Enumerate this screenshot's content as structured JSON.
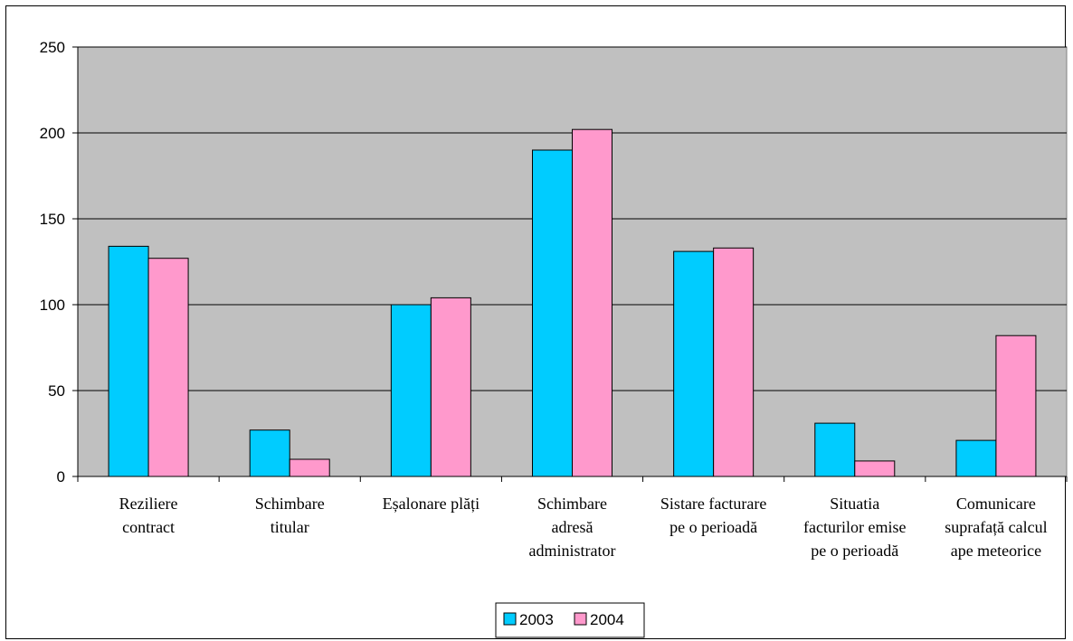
{
  "chart_data": {
    "type": "bar",
    "categories": [
      [
        "Reziliere",
        "contract"
      ],
      [
        "Schimbare",
        "titular"
      ],
      [
        "Eșalonare plăți"
      ],
      [
        "Schimbare",
        "adresă",
        "administrator"
      ],
      [
        "Sistare facturare",
        "pe o perioadă"
      ],
      [
        "Situatia",
        "facturilor emise",
        "pe o perioadă"
      ],
      [
        "Comunicare",
        "suprafață calcul",
        "ape meteorice"
      ]
    ],
    "series": [
      {
        "name": "2003",
        "color": "#00CCFF",
        "values": [
          134,
          27,
          100,
          190,
          131,
          31,
          21
        ]
      },
      {
        "name": "2004",
        "color": "#FF99CC",
        "values": [
          127,
          10,
          104,
          202,
          133,
          9,
          82
        ]
      }
    ],
    "yticks": [
      "0",
      "50",
      "100",
      "150",
      "200",
      "250"
    ],
    "ylim": [
      0,
      250
    ],
    "grid": true,
    "plot_background": "#C0C0C0",
    "legend_position": "bottom-center"
  }
}
